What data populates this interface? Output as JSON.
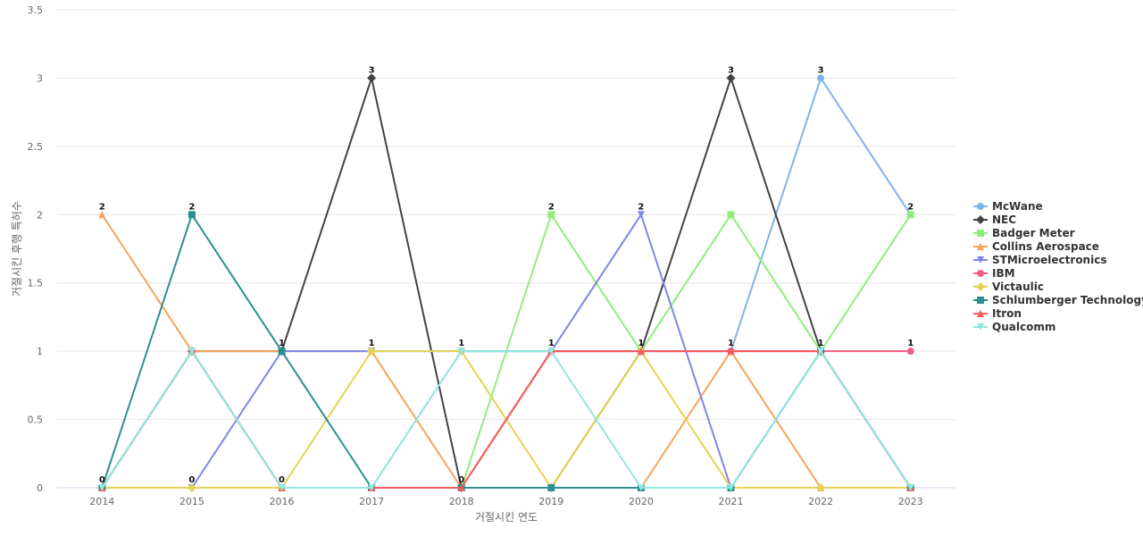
{
  "chart_data": {
    "type": "line",
    "title": "",
    "xlabel": "거절시킨 연도",
    "ylabel": "거절시킨 후행 특허수",
    "categories": [
      "2014",
      "2015",
      "2016",
      "2017",
      "2018",
      "2019",
      "2020",
      "2021",
      "2022",
      "2023"
    ],
    "ylim": [
      0,
      3.5
    ],
    "yticks": [
      0,
      0.5,
      1,
      1.5,
      2,
      2.5,
      3,
      3.5
    ],
    "grid": true,
    "legend_position": "right",
    "series": [
      {
        "name": "McWane",
        "color": "#7cb5ec",
        "marker": "circle",
        "values": [
          0,
          1,
          0,
          0,
          1,
          1,
          1,
          1,
          3,
          2
        ]
      },
      {
        "name": "NEC",
        "color": "#434348",
        "marker": "diamond",
        "values": [
          0,
          1,
          1,
          3,
          0,
          0,
          1,
          3,
          1,
          0
        ]
      },
      {
        "name": "Badger Meter",
        "color": "#90ed7d",
        "marker": "square",
        "values": [
          0,
          1,
          0,
          0,
          0,
          2,
          1,
          2,
          1,
          2
        ]
      },
      {
        "name": "Collins Aerospace",
        "color": "#f7a35c",
        "marker": "triangle",
        "values": [
          2,
          1,
          1,
          1,
          0,
          0,
          0,
          1,
          0,
          0
        ]
      },
      {
        "name": "STMicroelectronics",
        "color": "#8085e9",
        "marker": "triangle-down",
        "values": [
          0,
          0,
          1,
          1,
          1,
          1,
          2,
          0,
          1,
          0
        ]
      },
      {
        "name": "IBM",
        "color": "#f15c80",
        "marker": "circle",
        "values": [
          0,
          1,
          0,
          0,
          0,
          1,
          1,
          1,
          1,
          1
        ]
      },
      {
        "name": "Victaulic",
        "color": "#e4d354",
        "marker": "diamond",
        "values": [
          0,
          0,
          0,
          1,
          1,
          0,
          1,
          0,
          0,
          0
        ]
      },
      {
        "name": "Schlumberger Technology",
        "color": "#2b908f",
        "marker": "square",
        "values": [
          0,
          2,
          1,
          0,
          0,
          0,
          0,
          0,
          1,
          0
        ]
      },
      {
        "name": "Itron",
        "color": "#f45b5b",
        "marker": "triangle",
        "values": [
          0,
          1,
          0,
          0,
          0,
          1,
          1,
          1,
          1,
          0
        ]
      },
      {
        "name": "Qualcomm",
        "color": "#91e8e1",
        "marker": "triangle-down",
        "values": [
          0,
          1,
          0,
          0,
          1,
          1,
          0,
          0,
          1,
          0
        ]
      }
    ],
    "data_labels": [
      0,
      0,
      0,
      3,
      0,
      2,
      2,
      3,
      3,
      2
    ],
    "data_labels_upper": [
      2,
      2,
      1,
      1,
      1,
      1,
      1,
      1,
      1,
      1
    ]
  }
}
